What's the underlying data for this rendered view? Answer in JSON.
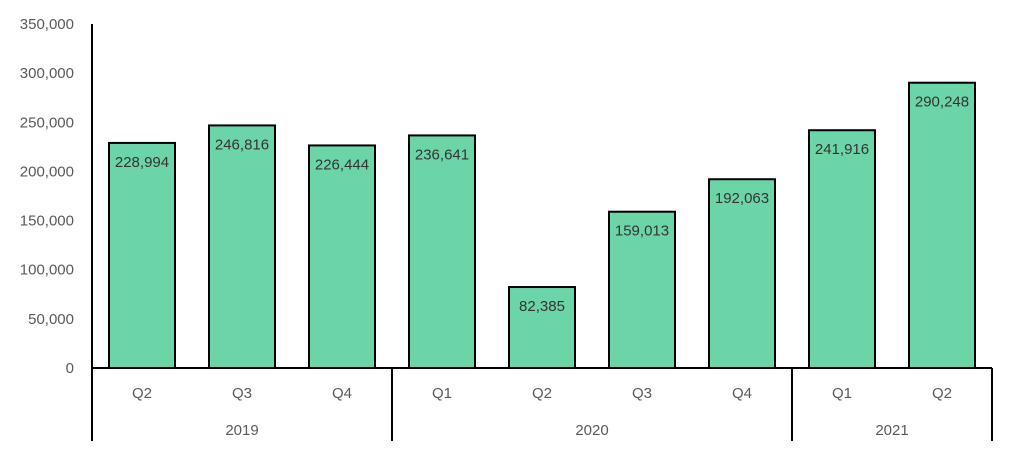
{
  "chart_data": {
    "type": "bar",
    "categories": [
      "Q2",
      "Q3",
      "Q4",
      "Q1",
      "Q2",
      "Q3",
      "Q4",
      "Q1",
      "Q2"
    ],
    "groups": [
      {
        "label": "2019",
        "count": 3
      },
      {
        "label": "2020",
        "count": 4
      },
      {
        "label": "2021",
        "count": 2
      }
    ],
    "values": [
      228994,
      246816,
      226444,
      236641,
      82385,
      159013,
      192063,
      241916,
      290248
    ],
    "value_labels": [
      "228,994",
      "246,816",
      "226,444",
      "236,641",
      "82,385",
      "159,013",
      "192,063",
      "241,916",
      "290,248"
    ],
    "ylim": [
      0,
      350000
    ],
    "yticks": [
      0,
      50000,
      100000,
      150000,
      200000,
      250000,
      300000,
      350000
    ],
    "ytick_labels": [
      "0",
      "50,000",
      "100,000",
      "150,000",
      "200,000",
      "250,000",
      "300,000",
      "350,000"
    ],
    "grid": false,
    "legend": "none",
    "colors": {
      "bar_fill": "#6cd5a8",
      "bar_stroke": "#000000",
      "axis": "#000000"
    }
  }
}
